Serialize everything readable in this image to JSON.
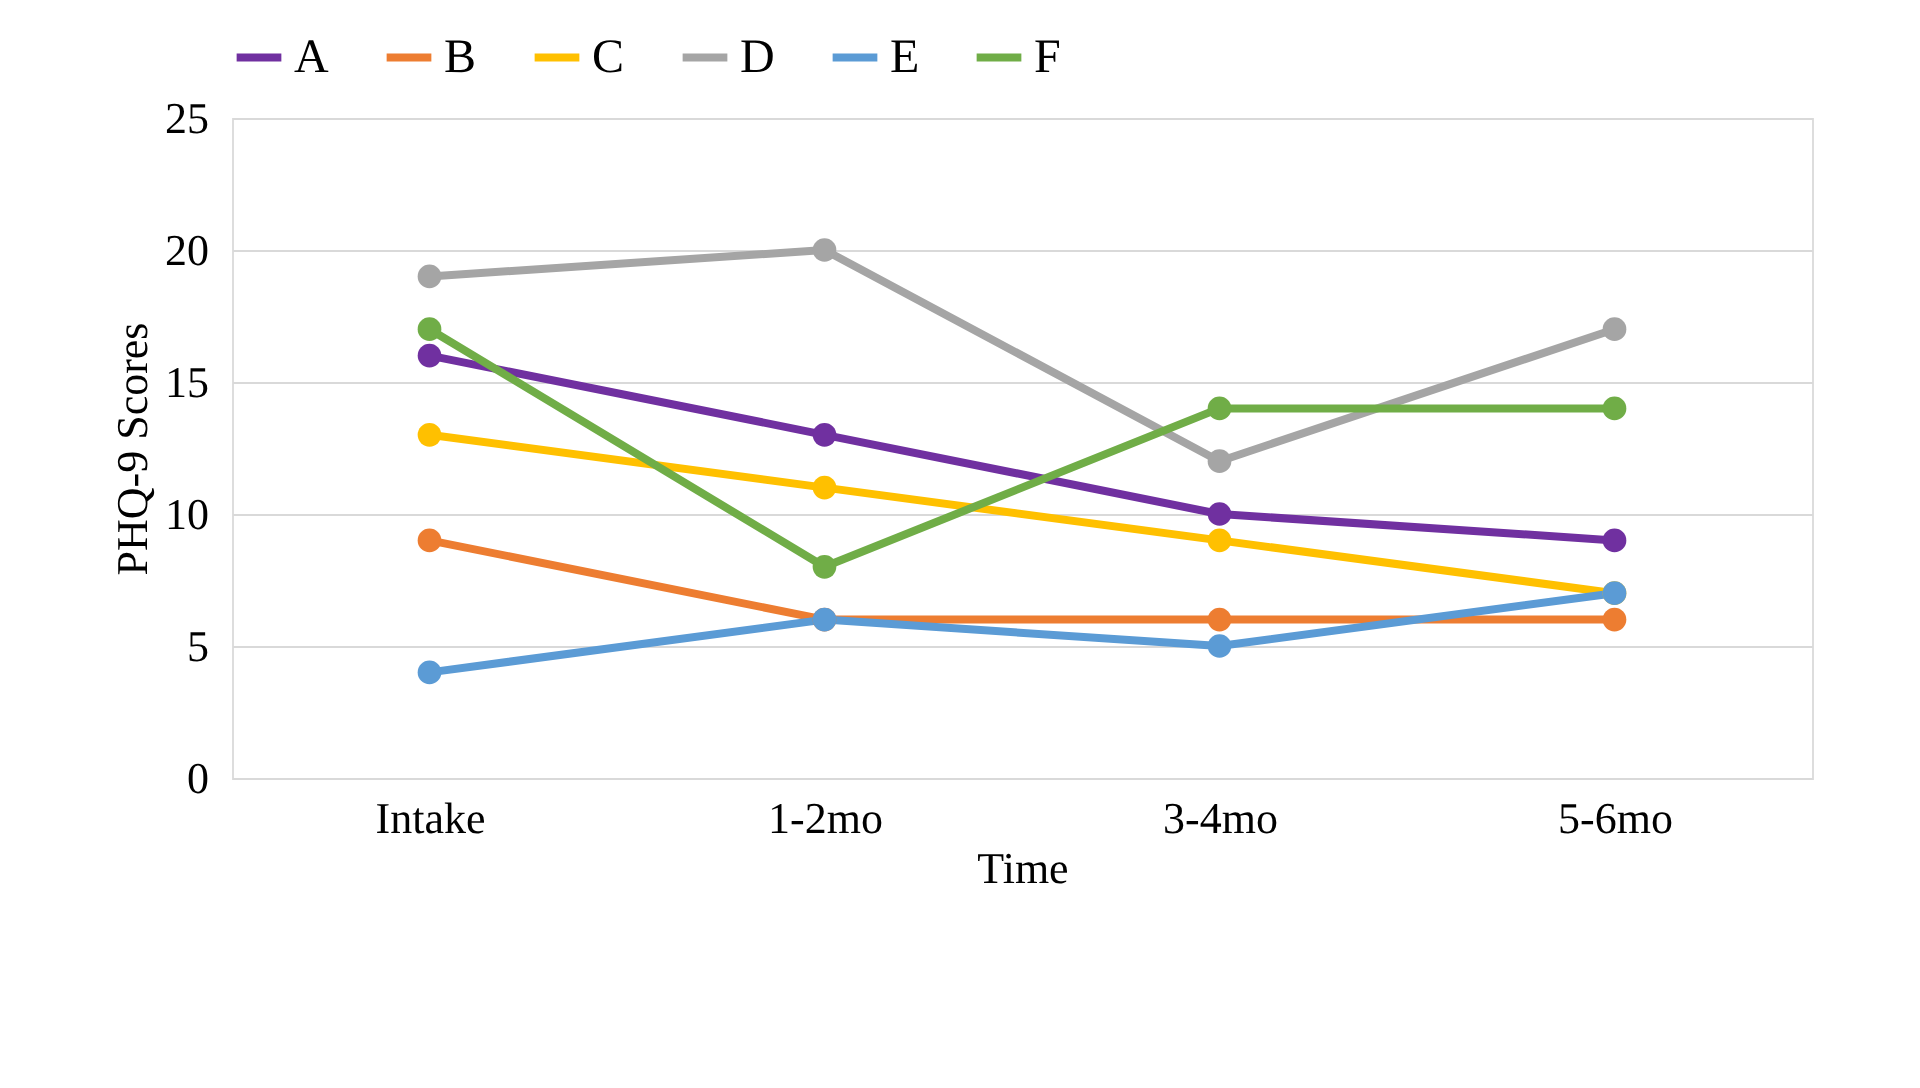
{
  "chart_data": {
    "type": "line",
    "xlabel": "Time",
    "ylabel": "PHQ-9 Scores",
    "categories": [
      "Intake",
      "1-2mo",
      "3-4mo",
      "5-6mo"
    ],
    "series": [
      {
        "name": "A",
        "color": "#7030a0",
        "values": [
          16,
          13,
          10,
          9
        ]
      },
      {
        "name": "B",
        "color": "#ed7d31",
        "values": [
          9,
          6,
          6,
          6
        ]
      },
      {
        "name": "C",
        "color": "#ffc000",
        "values": [
          13,
          11,
          9,
          7
        ]
      },
      {
        "name": "D",
        "color": "#a5a5a5",
        "values": [
          19,
          20,
          12,
          17
        ]
      },
      {
        "name": "E",
        "color": "#5b9bd5",
        "values": [
          4,
          6,
          5,
          7
        ]
      },
      {
        "name": "F",
        "color": "#70ad47",
        "values": [
          17,
          8,
          14,
          14
        ]
      }
    ],
    "ylim": [
      0,
      25
    ],
    "yticks": [
      0,
      5,
      10,
      15,
      20,
      25
    ],
    "grid": "y",
    "legend": "top",
    "marker": "circle",
    "line_style": "solid"
  }
}
